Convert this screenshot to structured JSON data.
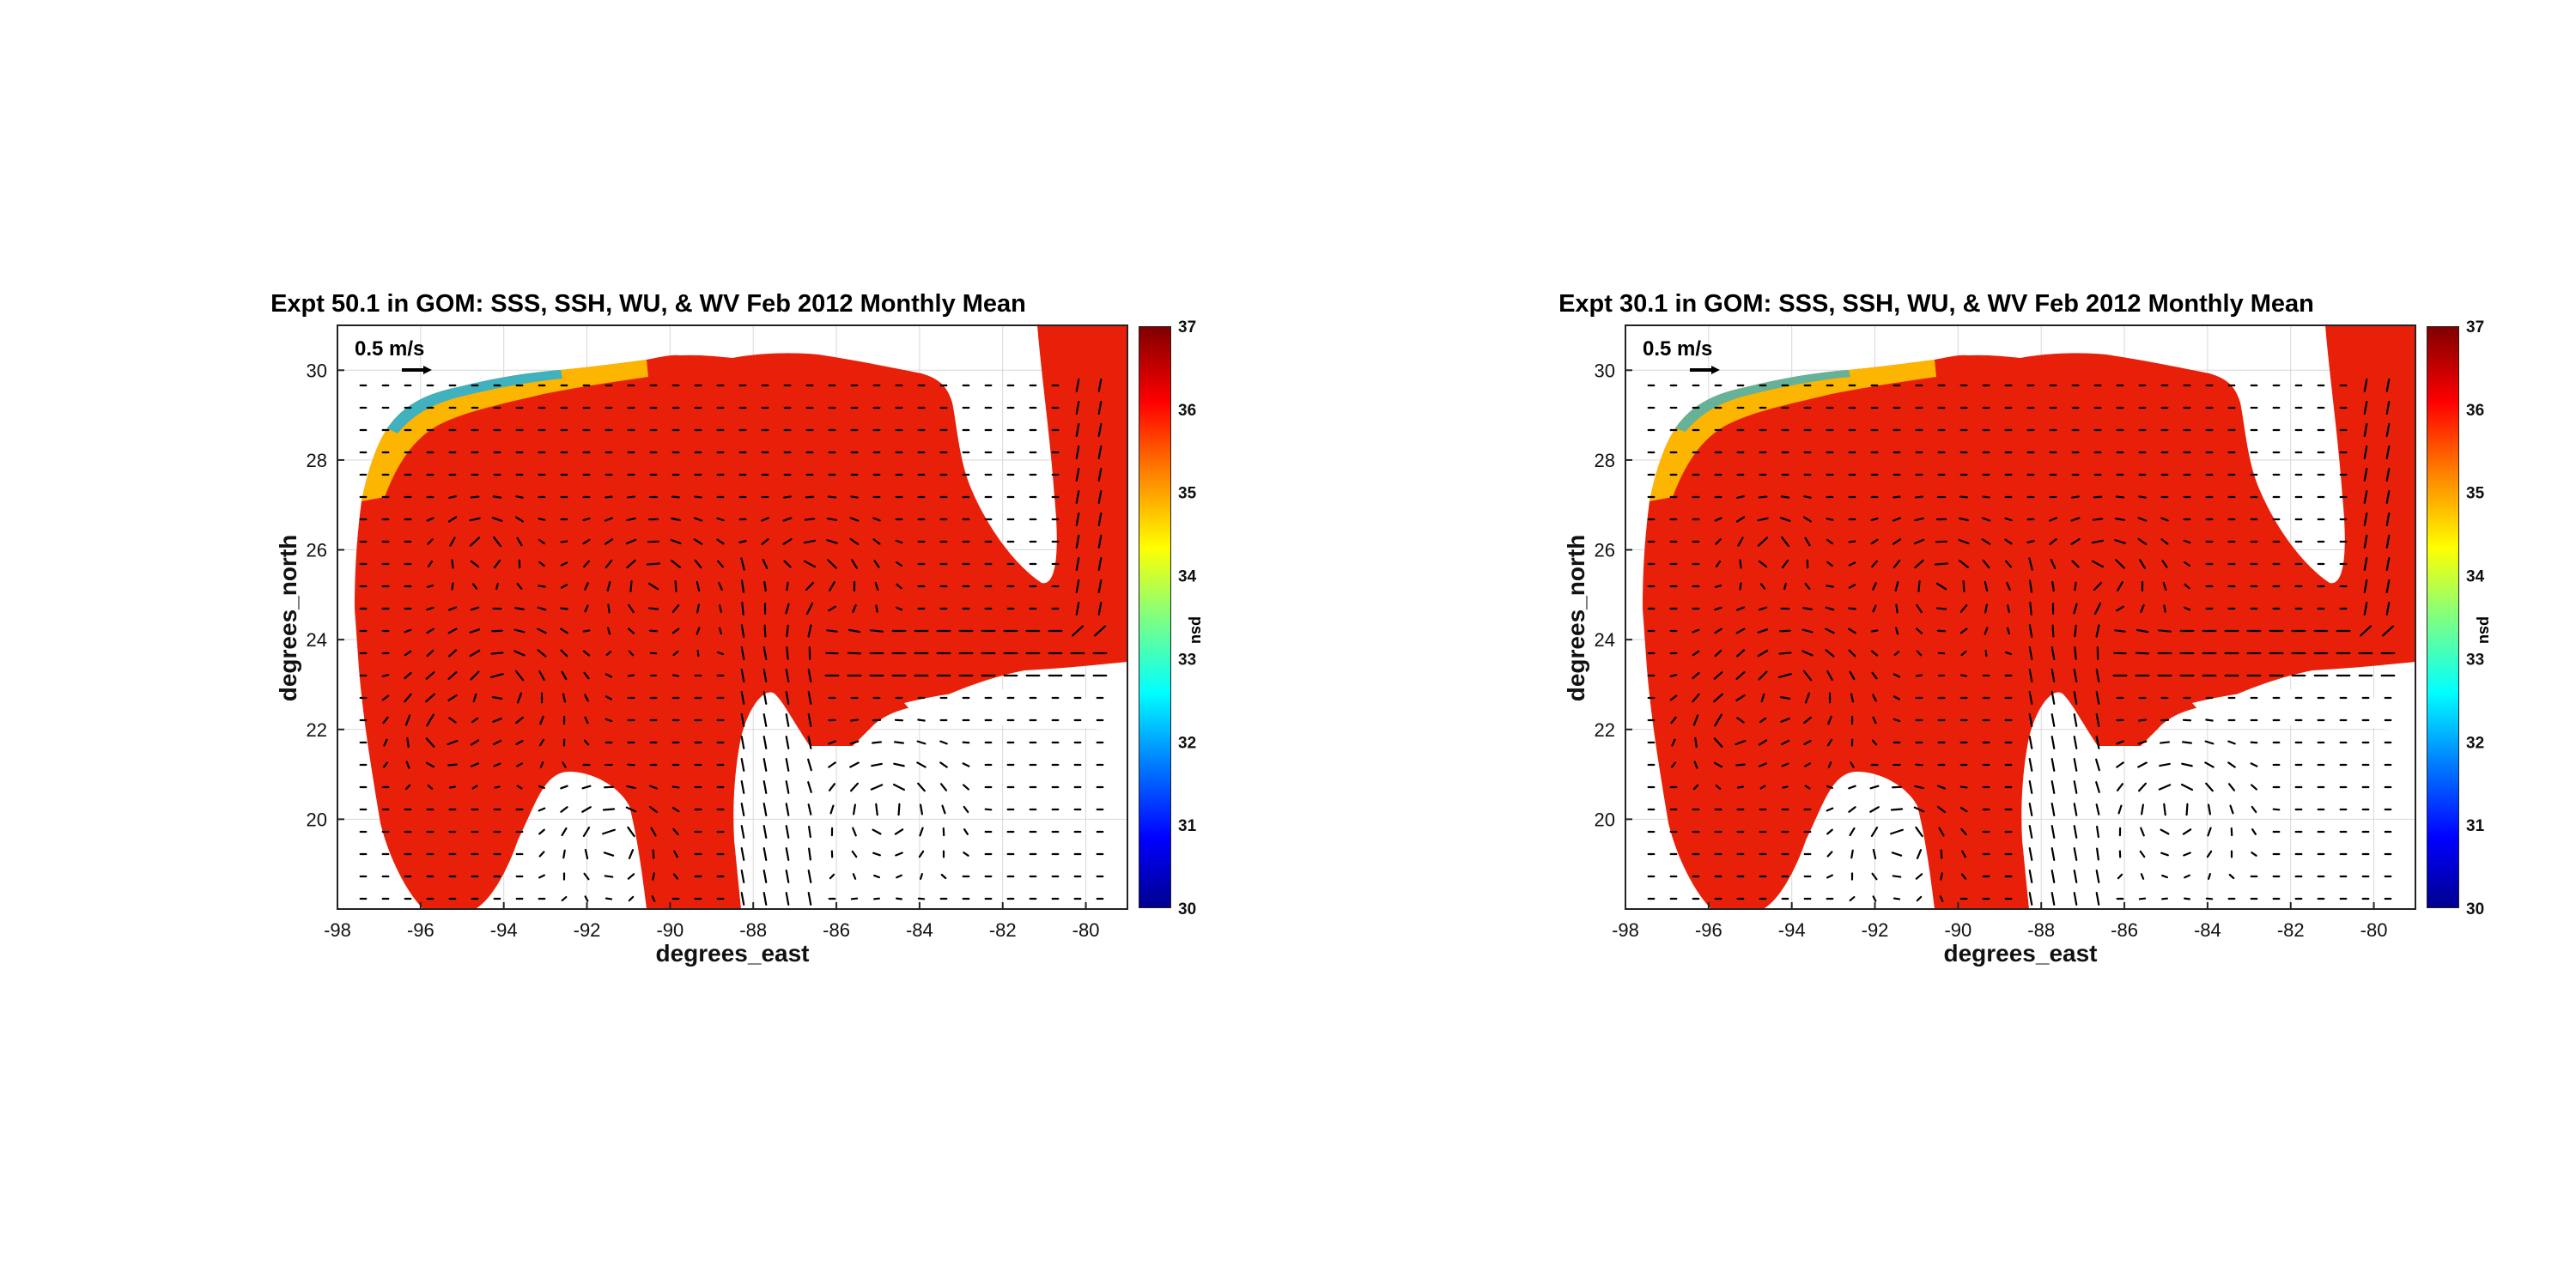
{
  "chart_data": [
    {
      "type": "heatmap",
      "title": "Expt 50.1 in GOM: SSS, SSH, WU, & WV Feb 2012 Monthly Mean",
      "xlabel": "degrees_east",
      "ylabel": "degrees_north",
      "xlim": [
        -98,
        -79
      ],
      "ylim": [
        18,
        31
      ],
      "x_ticks": [
        "-98",
        "-96",
        "-94",
        "-92",
        "-90",
        "-88",
        "-86",
        "-84",
        "-82",
        "-80"
      ],
      "y_ticks": [
        "20",
        "22",
        "24",
        "26",
        "28",
        "30"
      ],
      "colorbar": {
        "label": "psu",
        "range": [
          30,
          37
        ],
        "ticks": [
          "30",
          "31",
          "32",
          "33",
          "34",
          "35",
          "36",
          "37"
        ],
        "colormap": "jet"
      },
      "vector_scale_label": "0.5 m/s",
      "grid": true
    },
    {
      "type": "heatmap",
      "title": "Expt 30.1 in GOM: SSS, SSH, WU, & WV Feb 2012 Monthly Mean",
      "xlabel": "degrees_east",
      "ylabel": "degrees_north",
      "xlim": [
        -98,
        -79
      ],
      "ylim": [
        18,
        31
      ],
      "x_ticks": [
        "-98",
        "-96",
        "-94",
        "-92",
        "-90",
        "-88",
        "-86",
        "-84",
        "-82",
        "-80"
      ],
      "y_ticks": [
        "20",
        "22",
        "24",
        "26",
        "28",
        "30"
      ],
      "colorbar": {
        "label": "psu",
        "range": [
          30,
          37
        ],
        "ticks": [
          "30",
          "31",
          "32",
          "33",
          "34",
          "35",
          "36",
          "37"
        ],
        "colormap": "jet"
      },
      "vector_scale_label": "0.5 m/s",
      "grid": true
    }
  ],
  "colors": {
    "salty": "#e8200a",
    "fresh_coast": "#ffd000",
    "land": "#ffffff",
    "vectors": "#000000"
  }
}
